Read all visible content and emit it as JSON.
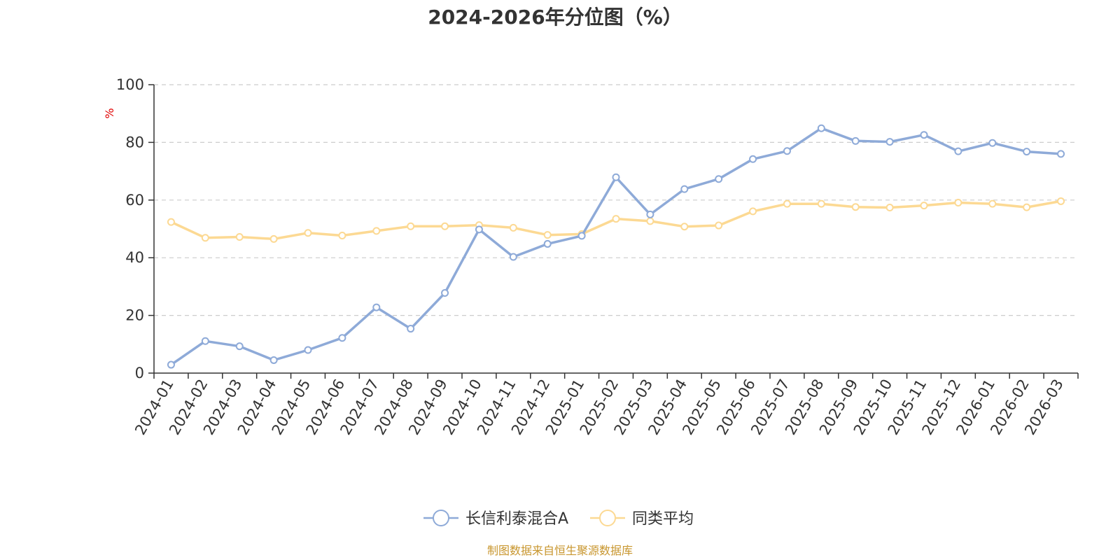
{
  "chart_data": {
    "type": "line",
    "title": "2024-2026年分位图（%）",
    "ylabel": "%",
    "ylim": [
      0,
      100
    ],
    "yticks": [
      0,
      20,
      40,
      60,
      80,
      100
    ],
    "grid": true,
    "legend_position": "bottom-center",
    "categories": [
      "2024-01",
      "2024-02",
      "2024-03",
      "2024-04",
      "2024-05",
      "2024-06",
      "2024-07",
      "2024-08",
      "2024-09",
      "2024-10",
      "2024-11",
      "2024-12",
      "2025-01",
      "2025-02",
      "2025-03",
      "2025-04",
      "2025-05",
      "2025-06",
      "2025-07",
      "2025-08",
      "2025-09",
      "2025-10",
      "2025-11",
      "2025-12",
      "2026-01",
      "2026-02",
      "2026-03"
    ],
    "series": [
      {
        "name": "长信利泰混合A",
        "color": "#8eaad8",
        "values": [
          2.9,
          11.1,
          9.3,
          4.5,
          8.0,
          12.2,
          22.8,
          15.4,
          27.8,
          49.8,
          40.3,
          44.8,
          47.6,
          67.9,
          55.0,
          63.8,
          67.3,
          74.2,
          77.0,
          84.9,
          80.5,
          80.2,
          82.6,
          76.9,
          79.8,
          76.8,
          76.0
        ]
      },
      {
        "name": "同类平均",
        "color": "#fcd993",
        "values": [
          52.4,
          46.9,
          47.2,
          46.5,
          48.6,
          47.7,
          49.3,
          50.9,
          50.9,
          51.3,
          50.4,
          47.9,
          48.2,
          53.5,
          52.7,
          50.8,
          51.2,
          56.1,
          58.7,
          58.7,
          57.6,
          57.4,
          58.1,
          59.1,
          58.7,
          57.5,
          59.6
        ]
      }
    ]
  },
  "footer": {
    "source": "制图数据来自恒生聚源数据库"
  }
}
